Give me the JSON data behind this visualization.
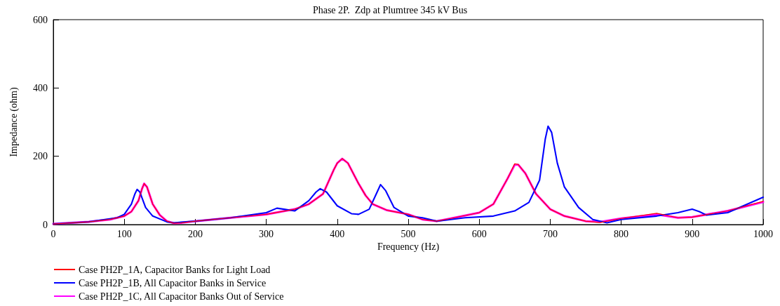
{
  "chart_data": {
    "type": "line",
    "title": "Phase 2P.  Zdp at Plumtree 345 kV Bus",
    "xlabel": "Frequency (Hz)",
    "ylabel": "Impedance (ohm)",
    "xlim": [
      0,
      1000
    ],
    "xticks": [
      0,
      100,
      200,
      300,
      400,
      500,
      600,
      700,
      800,
      900,
      1000
    ],
    "ylim": [
      0,
      600
    ],
    "yticks": [
      0,
      200,
      400,
      600
    ],
    "grid": false,
    "legend": "bottom left",
    "marker": "none",
    "line_style": "solid",
    "series": [
      {
        "name": "Case PH2P_1A, Capacitor Banks for Light Load",
        "color": "#ff0000",
        "x": [
          0,
          50,
          80,
          100,
          110,
          120,
          125,
          128,
          132,
          140,
          150,
          160,
          170,
          180,
          200,
          250,
          300,
          340,
          360,
          380,
          395,
          400,
          407,
          415,
          430,
          440,
          450,
          470,
          500,
          520,
          540,
          560,
          600,
          620,
          640,
          650,
          655,
          665,
          680,
          700,
          720,
          750,
          770,
          800,
          850,
          880,
          900,
          950,
          1000
        ],
        "values": [
          2,
          8,
          15,
          25,
          38,
          70,
          105,
          120,
          110,
          60,
          28,
          10,
          4,
          5,
          10,
          20,
          30,
          45,
          60,
          90,
          160,
          180,
          193,
          180,
          120,
          85,
          60,
          42,
          30,
          15,
          10,
          18,
          35,
          60,
          135,
          178,
          176,
          150,
          90,
          45,
          25,
          10,
          6,
          18,
          33,
          20,
          22,
          40,
          68
        ]
      },
      {
        "name": "Case PH2P_1B, All Capacitor Banks in Service",
        "color": "#0000ff",
        "x": [
          0,
          50,
          90,
          100,
          110,
          115,
          118,
          122,
          130,
          140,
          160,
          170,
          180,
          200,
          250,
          300,
          315,
          325,
          340,
          360,
          370,
          376,
          385,
          400,
          420,
          430,
          445,
          455,
          461,
          468,
          480,
          500,
          520,
          540,
          560,
          580,
          620,
          650,
          670,
          685,
          693,
          697,
          702,
          710,
          720,
          740,
          760,
          780,
          800,
          850,
          880,
          900,
          910,
          920,
          950,
          1000
        ],
        "values": [
          2,
          8,
          20,
          30,
          60,
          90,
          103,
          95,
          50,
          25,
          8,
          5,
          7,
          10,
          20,
          35,
          48,
          45,
          40,
          70,
          95,
          105,
          95,
          55,
          32,
          30,
          45,
          90,
          117,
          100,
          50,
          25,
          20,
          10,
          15,
          20,
          25,
          40,
          65,
          130,
          250,
          288,
          270,
          180,
          110,
          50,
          15,
          5,
          15,
          25,
          35,
          45,
          38,
          28,
          35,
          80
        ]
      },
      {
        "name": "Case PH2P_1C, All Capacitor Banks Out of Service",
        "color": "#ff00ff",
        "x": [
          0,
          50,
          80,
          100,
          110,
          120,
          125,
          128,
          132,
          140,
          150,
          160,
          170,
          180,
          200,
          250,
          300,
          340,
          360,
          380,
          395,
          400,
          407,
          415,
          430,
          440,
          450,
          470,
          500,
          520,
          540,
          560,
          600,
          620,
          640,
          650,
          655,
          665,
          680,
          700,
          720,
          750,
          770,
          800,
          850,
          880,
          900,
          950,
          1000
        ],
        "values": [
          2,
          8,
          15,
          25,
          38,
          70,
          105,
          120,
          110,
          60,
          28,
          10,
          4,
          5,
          10,
          20,
          30,
          45,
          60,
          90,
          160,
          180,
          193,
          180,
          120,
          85,
          60,
          42,
          30,
          15,
          10,
          18,
          35,
          60,
          135,
          175,
          175,
          150,
          90,
          45,
          25,
          10,
          8,
          18,
          30,
          20,
          22,
          40,
          66
        ]
      }
    ]
  }
}
